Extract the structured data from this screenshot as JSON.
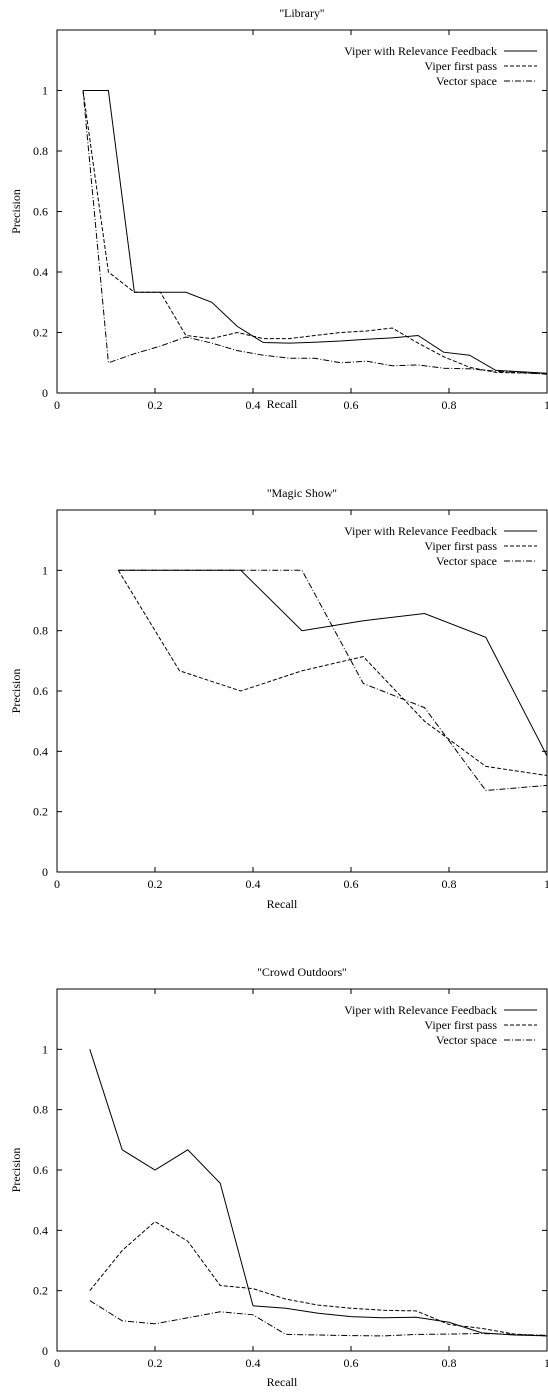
{
  "chart_data": [
    {
      "type": "line",
      "title": "''Library''",
      "xlabel": "Recall",
      "ylabel": "Precision",
      "xlim": [
        0,
        1
      ],
      "ylim": [
        0,
        1.2
      ],
      "xticks": [
        "0",
        "0.2",
        "0.4",
        "0.6",
        "0.8",
        "1"
      ],
      "yticks": [
        "0",
        "0.2",
        "0.4",
        "0.6",
        "0.8",
        "1"
      ],
      "legend_position": "top-right",
      "series": [
        {
          "name": "Viper with Relevance Feedback",
          "dash": "solid",
          "x": [
            0.053,
            0.105,
            0.158,
            0.263,
            0.316,
            0.368,
            0.421,
            0.474,
            0.526,
            0.579,
            0.632,
            0.684,
            0.737,
            0.789,
            0.842,
            0.895,
            1.0
          ],
          "y": [
            1.0,
            1.0,
            0.333,
            0.333,
            0.3,
            0.22,
            0.167,
            0.165,
            0.168,
            0.172,
            0.178,
            0.182,
            0.19,
            0.135,
            0.125,
            0.075,
            0.065
          ]
        },
        {
          "name": "Viper first pass",
          "dash": "dashed",
          "x": [
            0.053,
            0.105,
            0.158,
            0.211,
            0.263,
            0.316,
            0.368,
            0.421,
            0.474,
            0.526,
            0.579,
            0.632,
            0.684,
            0.737,
            0.789,
            0.842,
            0.895,
            1.0
          ],
          "y": [
            1.0,
            0.4,
            0.333,
            0.333,
            0.19,
            0.18,
            0.2,
            0.18,
            0.18,
            0.19,
            0.2,
            0.205,
            0.215,
            0.165,
            0.12,
            0.085,
            0.068,
            0.064
          ]
        },
        {
          "name": "Vector space",
          "dash": "dashdot",
          "x": [
            0.053,
            0.105,
            0.158,
            0.211,
            0.263,
            0.316,
            0.368,
            0.421,
            0.474,
            0.526,
            0.579,
            0.632,
            0.684,
            0.737,
            0.789,
            0.842,
            0.895,
            1.0
          ],
          "y": [
            1.0,
            0.1,
            0.13,
            0.155,
            0.185,
            0.165,
            0.14,
            0.125,
            0.115,
            0.115,
            0.1,
            0.105,
            0.09,
            0.093,
            0.082,
            0.08,
            0.072,
            0.062
          ]
        }
      ]
    },
    {
      "type": "line",
      "title": "''Magic Show''",
      "xlabel": "Recall",
      "ylabel": "Precision",
      "xlim": [
        0,
        1
      ],
      "ylim": [
        0,
        1.2
      ],
      "xticks": [
        "0",
        "0.2",
        "0.4",
        "0.6",
        "0.8",
        "1"
      ],
      "yticks": [
        "0",
        "0.2",
        "0.4",
        "0.6",
        "0.8",
        "1"
      ],
      "legend_position": "top-right",
      "series": [
        {
          "name": "Viper with Relevance Feedback",
          "dash": "solid",
          "x": [
            0.125,
            0.25,
            0.375,
            0.5,
            0.625,
            0.75,
            0.875,
            1.0
          ],
          "y": [
            1.0,
            1.0,
            1.0,
            0.8,
            0.833,
            0.857,
            0.778,
            0.385
          ]
        },
        {
          "name": "Viper first pass",
          "dash": "dashed",
          "x": [
            0.125,
            0.25,
            0.375,
            0.5,
            0.625,
            0.75,
            0.875,
            1.0
          ],
          "y": [
            1.0,
            0.667,
            0.6,
            0.667,
            0.714,
            0.5,
            0.35,
            0.32
          ]
        },
        {
          "name": "Vector space",
          "dash": "dashdot",
          "x": [
            0.125,
            0.25,
            0.375,
            0.5,
            0.625,
            0.75,
            0.875,
            1.0
          ],
          "y": [
            1.0,
            1.0,
            1.0,
            1.0,
            0.625,
            0.545,
            0.27,
            0.287
          ]
        }
      ]
    },
    {
      "type": "line",
      "title": "''Crowd Outdoors''",
      "xlabel": "Recall",
      "ylabel": "Precision",
      "xlim": [
        0,
        1
      ],
      "ylim": [
        0,
        1.2
      ],
      "xticks": [
        "0",
        "0.2",
        "0.4",
        "0.6",
        "0.8",
        "1"
      ],
      "yticks": [
        "0",
        "0.2",
        "0.4",
        "0.6",
        "0.8",
        "1"
      ],
      "legend_position": "top-right",
      "series": [
        {
          "name": "Viper with Relevance Feedback",
          "dash": "solid",
          "x": [
            0.067,
            0.133,
            0.2,
            0.267,
            0.333,
            0.4,
            0.467,
            0.533,
            0.6,
            0.667,
            0.733,
            0.8,
            0.867,
            0.933,
            1.0
          ],
          "y": [
            1.0,
            0.667,
            0.6,
            0.667,
            0.556,
            0.15,
            0.142,
            0.125,
            0.114,
            0.11,
            0.112,
            0.095,
            0.06,
            0.053,
            0.05
          ]
        },
        {
          "name": "Viper first pass",
          "dash": "dashed",
          "x": [
            0.067,
            0.133,
            0.2,
            0.267,
            0.333,
            0.4,
            0.467,
            0.533,
            0.6,
            0.667,
            0.733,
            0.8,
            0.867,
            0.933,
            1.0
          ],
          "y": [
            0.2,
            0.333,
            0.429,
            0.364,
            0.217,
            0.207,
            0.172,
            0.152,
            0.142,
            0.135,
            0.133,
            0.088,
            0.075,
            0.056,
            0.05
          ]
        },
        {
          "name": "Vector space",
          "dash": "dashdot",
          "x": [
            0.067,
            0.133,
            0.2,
            0.267,
            0.333,
            0.4,
            0.467,
            0.533,
            0.6,
            0.667,
            0.733,
            0.8,
            0.867,
            0.933,
            1.0
          ],
          "y": [
            0.167,
            0.1,
            0.09,
            0.11,
            0.13,
            0.12,
            0.055,
            0.053,
            0.051,
            0.05,
            0.055,
            0.056,
            0.058,
            0.055,
            0.052
          ]
        }
      ]
    }
  ]
}
